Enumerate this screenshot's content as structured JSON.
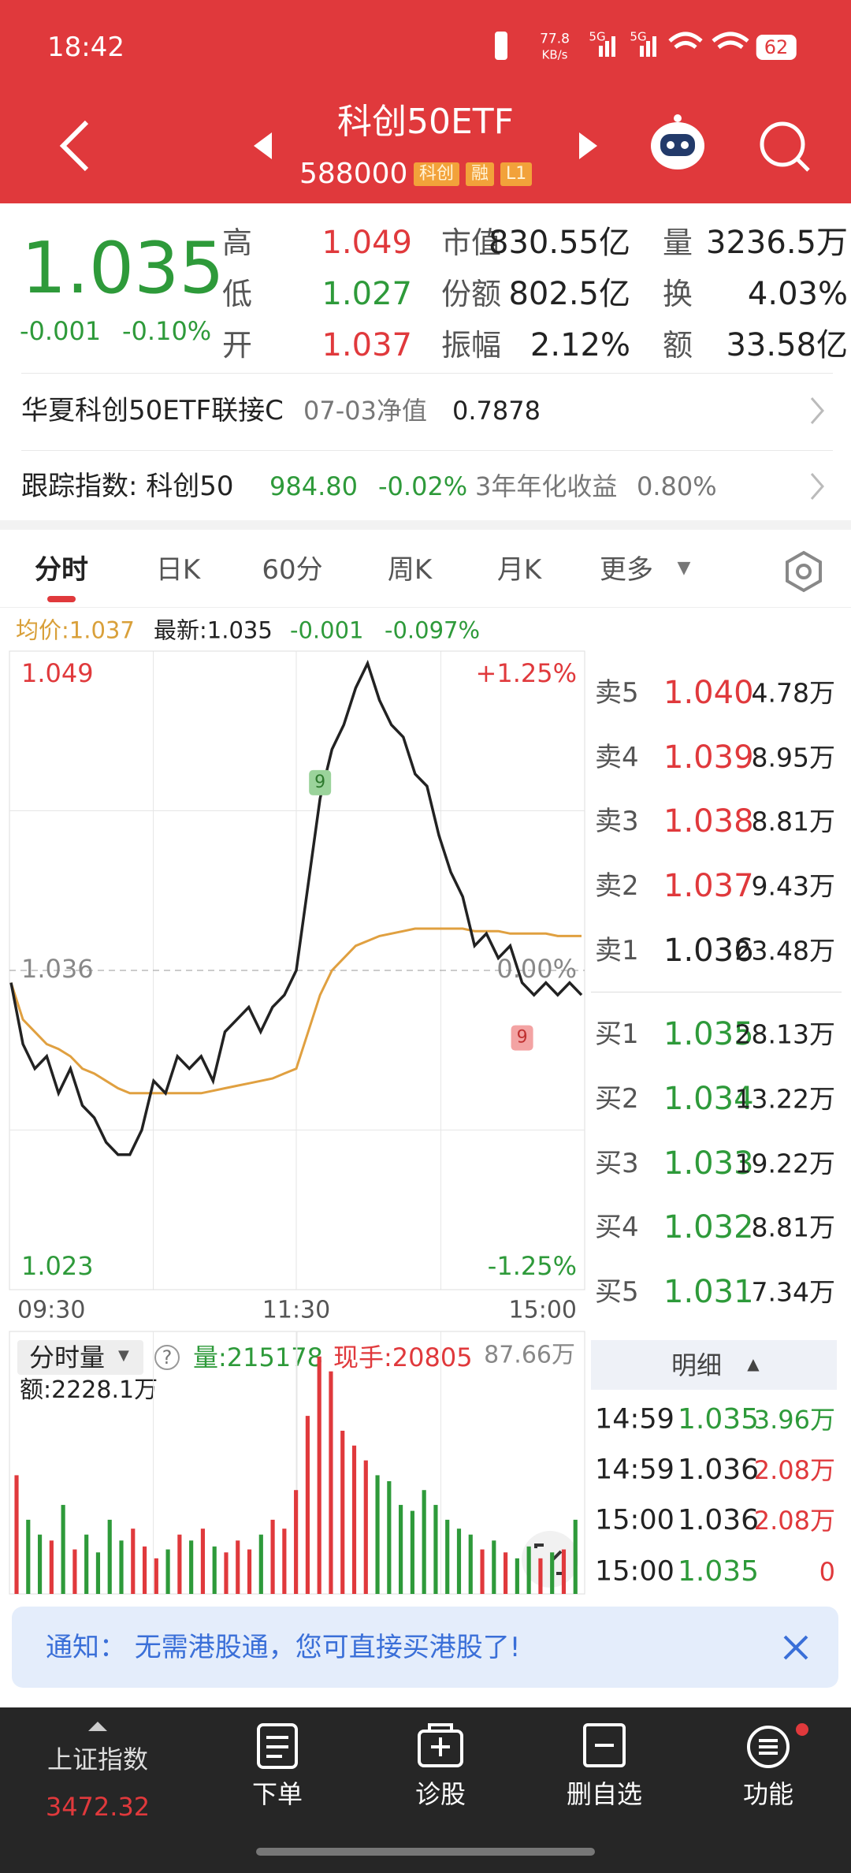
{
  "status_bar": {
    "time": "18:42",
    "net_speed": "77.8",
    "net_unit": "KB/s",
    "signal1": "5G",
    "signal2": "5G",
    "battery": "62"
  },
  "header": {
    "title": "科创50ETF",
    "code": "588000",
    "tags": [
      "科创",
      "融",
      "L1"
    ]
  },
  "quote": {
    "price": "1.035",
    "change": "-0.001",
    "change_pct": "-0.10%",
    "stats": [
      [
        "高",
        "1.049",
        "市值",
        "830.55亿",
        "量",
        "3236.5万"
      ],
      [
        "低",
        "1.027",
        "份额",
        "802.5亿",
        "换",
        "4.03%"
      ],
      [
        "开",
        "1.037",
        "振幅",
        "2.12%",
        "额",
        "33.58亿"
      ]
    ]
  },
  "fund_row": {
    "name": "华夏科创50ETF联接C",
    "date_label": "07-03净值",
    "nav": "0.7878"
  },
  "index_row": {
    "label": "跟踪指数: 科创50",
    "value": "984.80",
    "change": "-0.02%",
    "return_label": "3年年化收益",
    "return": "0.80%"
  },
  "tabs": [
    "分时",
    "日K",
    "60分",
    "周K",
    "月K",
    "更多"
  ],
  "info_bar": {
    "avg": "均价:1.037",
    "latest": "最新:1.035",
    "change": "-0.001",
    "pct": "-0.097%"
  },
  "order_book": {
    "asks": [
      [
        "卖5",
        "1.040",
        "4.78万"
      ],
      [
        "卖4",
        "1.039",
        "8.95万"
      ],
      [
        "卖3",
        "1.038",
        "8.81万"
      ],
      [
        "卖2",
        "1.037",
        "9.43万"
      ],
      [
        "卖1",
        "1.036",
        "23.48万"
      ]
    ],
    "bids": [
      [
        "买1",
        "1.035",
        "28.13万"
      ],
      [
        "买2",
        "1.034",
        "13.22万"
      ],
      [
        "买3",
        "1.033",
        "19.22万"
      ],
      [
        "买4",
        "1.032",
        "8.81万"
      ],
      [
        "买5",
        "1.031",
        "7.34万"
      ]
    ]
  },
  "volume_header": {
    "label": "分时量",
    "help": "?",
    "volume": "量:215178",
    "hand": "现手:20805",
    "amount": "额:2228.1万"
  },
  "details": {
    "title": "明细",
    "rows": [
      [
        "14:59",
        "1.035",
        "3.96万"
      ],
      [
        "14:59",
        "1.036",
        "2.08万"
      ],
      [
        "15:00",
        "1.036",
        "2.08万"
      ],
      [
        "15:00",
        "1.035",
        "0"
      ]
    ]
  },
  "notice": {
    "text": "通知： 无需港股通，您可直接买港股了!"
  },
  "bottom_nav": {
    "index_name": "上证指数",
    "index_value": "3472.32",
    "items": [
      "下单",
      "诊股",
      "删自选",
      "功能"
    ]
  },
  "chart_data": [
    {
      "type": "line",
      "x": [
        0,
        5,
        10,
        15,
        20,
        25,
        30,
        35,
        40,
        45,
        50,
        55,
        60,
        65,
        70,
        75,
        80,
        85,
        90,
        95,
        100,
        105,
        110,
        115,
        120,
        125,
        130,
        135,
        140,
        145,
        150,
        155,
        160,
        165,
        170,
        175,
        180,
        185,
        190,
        195,
        200,
        205,
        210,
        215,
        220,
        225,
        230,
        235,
        240
      ],
      "xlim": [
        0,
        240
      ],
      "xticks": [
        {
          "value": 0,
          "label": "09:30"
        },
        {
          "value": 120,
          "label": "11:30"
        },
        {
          "value": 240,
          "label": "15:00"
        }
      ],
      "ylim": [
        1.023,
        1.049
      ],
      "yticks": [
        1.023,
        1.036,
        1.049
      ],
      "y2lim": [
        -1.25,
        1.25
      ],
      "y2ticks": [
        {
          "value": -1.25,
          "label": "-1.25%"
        },
        {
          "value": 0,
          "label": "0.00%"
        },
        {
          "value": 1.25,
          "label": "+1.25%"
        }
      ],
      "series": [
        {
          "color": "#222222",
          "values": [
            1.0355,
            1.033,
            1.032,
            1.0325,
            1.031,
            1.032,
            1.0305,
            1.03,
            1.029,
            1.0285,
            1.0285,
            1.0295,
            1.0315,
            1.031,
            1.0325,
            1.032,
            1.0325,
            1.0315,
            1.0335,
            1.034,
            1.0345,
            1.0335,
            1.0345,
            1.035,
            1.036,
            1.0395,
            1.043,
            1.045,
            1.046,
            1.0475,
            1.0485,
            1.047,
            1.046,
            1.0455,
            1.044,
            1.0435,
            1.0415,
            1.04,
            1.039,
            1.037,
            1.0375,
            1.0365,
            1.037,
            1.0355,
            1.035,
            1.0355,
            1.035,
            1.0355,
            1.035
          ]
        },
        {
          "color": "#e0a040",
          "values": [
            1.0355,
            1.034,
            1.0335,
            1.033,
            1.0328,
            1.0325,
            1.032,
            1.0318,
            1.0315,
            1.0312,
            1.031,
            1.031,
            1.031,
            1.031,
            1.031,
            1.031,
            1.031,
            1.0311,
            1.0312,
            1.0313,
            1.0314,
            1.0315,
            1.0316,
            1.0318,
            1.032,
            1.0335,
            1.035,
            1.036,
            1.0365,
            1.037,
            1.0372,
            1.0374,
            1.0375,
            1.0376,
            1.0377,
            1.0377,
            1.0377,
            1.0377,
            1.0377,
            1.0376,
            1.0376,
            1.0376,
            1.0375,
            1.0375,
            1.0375,
            1.0375,
            1.0374,
            1.0374,
            1.0374
          ]
        }
      ],
      "annotations": [
        "9",
        "9"
      ]
    },
    {
      "type": "bar",
      "up_color": "#e0393c",
      "down_color": "#2e9a3a",
      "ylim": [
        0,
        87.66
      ],
      "yticks": [
        {
          "value": 87.66,
          "label": "87.66万"
        }
      ],
      "values": [
        40,
        25,
        20,
        18,
        30,
        15,
        20,
        14,
        25,
        18,
        22,
        16,
        12,
        15,
        20,
        18,
        22,
        16,
        14,
        18,
        15,
        20,
        25,
        22,
        35,
        60,
        80,
        75,
        55,
        50,
        45,
        40,
        38,
        30,
        28,
        35,
        30,
        25,
        22,
        20,
        15,
        18,
        14,
        12,
        16,
        12,
        14,
        15,
        25
      ]
    }
  ]
}
